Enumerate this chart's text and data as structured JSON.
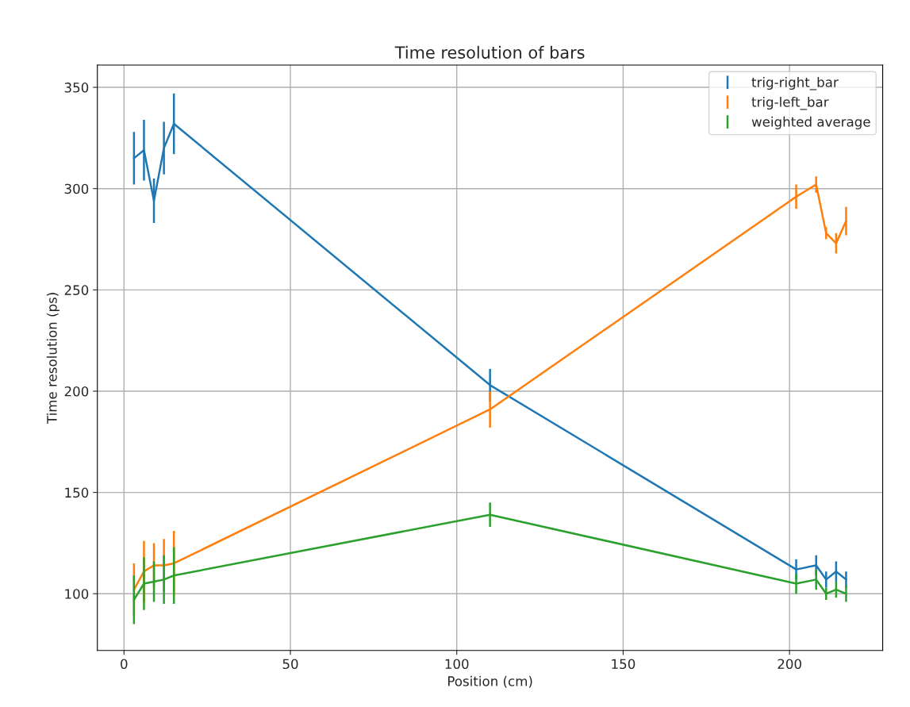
{
  "chart_data": {
    "type": "line",
    "title": "Time resolution of bars",
    "xlabel": "Position (cm)",
    "ylabel": "Time resolution (ps)",
    "x": [
      3,
      6,
      9,
      12,
      15,
      110,
      202,
      208,
      211,
      214,
      217
    ],
    "series": [
      {
        "name": "trig-right_bar",
        "color": "#1f77b4",
        "values": [
          315,
          319,
          294,
          320,
          332,
          203,
          112,
          114,
          107,
          111,
          107
        ],
        "errors": [
          13,
          15,
          11,
          13,
          15,
          8,
          5,
          5,
          4,
          5,
          4
        ]
      },
      {
        "name": "trig-left_bar",
        "color": "#ff7f0e",
        "values": [
          102,
          111,
          114,
          114,
          115,
          191,
          296,
          302,
          278,
          273,
          284
        ],
        "errors": [
          13,
          15,
          11,
          13,
          16,
          9,
          6,
          4,
          3,
          5,
          7
        ]
      },
      {
        "name": "weighted average",
        "color": "#2ca02c",
        "values": [
          97,
          105,
          106,
          107,
          109,
          139,
          105,
          107,
          100,
          102,
          100
        ],
        "errors": [
          12,
          13,
          10,
          12,
          14,
          6,
          5,
          5,
          3,
          4,
          4
        ]
      }
    ],
    "xlim": [
      -8,
      228
    ],
    "xticks": [
      0,
      50,
      100,
      150,
      200
    ],
    "ylim": [
      72,
      361
    ],
    "yticks": [
      100,
      150,
      200,
      250,
      300,
      350
    ],
    "grid": true,
    "legend": "top right",
    "marker": "none",
    "line_style": "solid"
  }
}
